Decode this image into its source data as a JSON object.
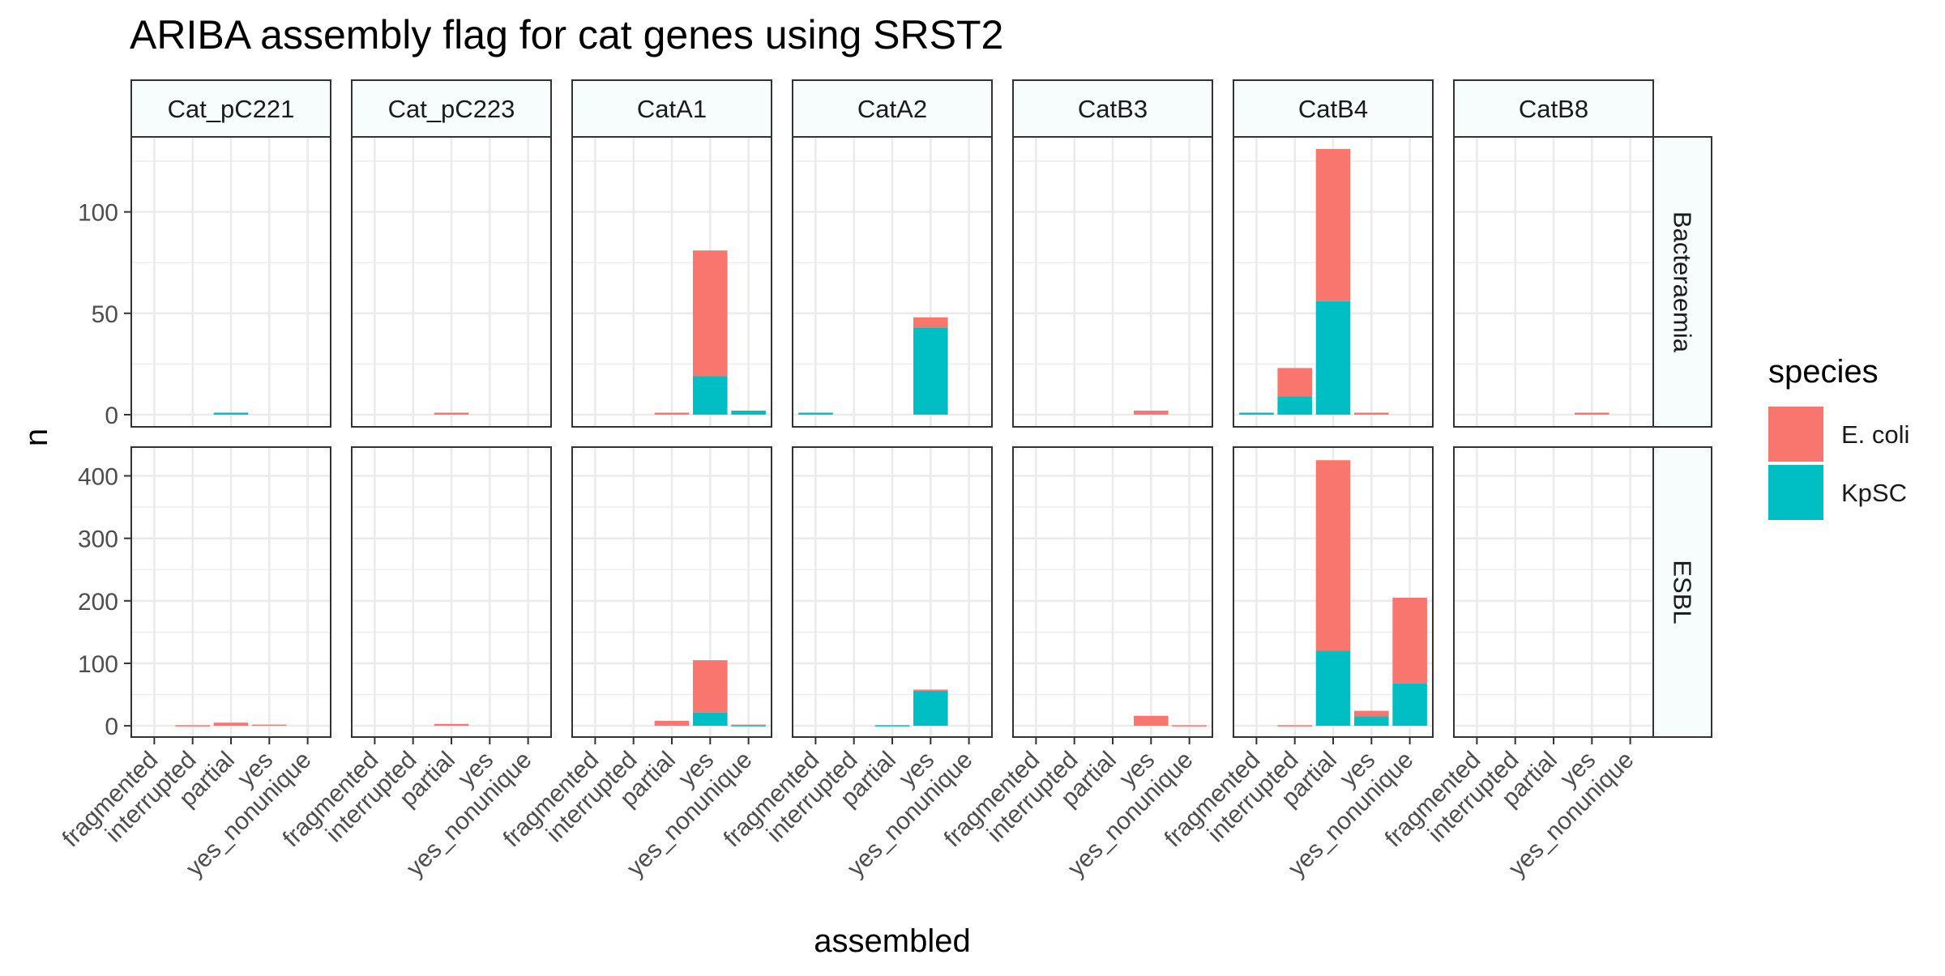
{
  "chart_data": {
    "type": "bar",
    "stacked": true,
    "title": "ARIBA assembly flag for cat genes using SRST2",
    "xlabel": "assembled",
    "ylabel": "n",
    "categories": [
      "fragmented",
      "interrupted",
      "partial",
      "yes",
      "yes_nonunique"
    ],
    "facet_columns": [
      "Cat_pC221",
      "Cat_pC223",
      "CatA1",
      "CatA2",
      "CatB3",
      "CatB4",
      "CatB8"
    ],
    "facet_rows": [
      {
        "label": "Bacteraemia",
        "ylim": [
          -6,
          137
        ],
        "ticks": [
          0,
          50,
          100
        ],
        "minor_ticks": [
          25,
          75,
          125
        ]
      },
      {
        "label": "ESBL",
        "ylim": [
          -18,
          446
        ],
        "ticks": [
          0,
          100,
          200,
          300,
          400
        ],
        "minor_ticks": [
          50,
          150,
          250,
          350
        ]
      }
    ],
    "legend": {
      "title": "species",
      "position": "right",
      "entries": [
        "E. coli",
        "KpSC"
      ]
    },
    "series": [
      {
        "name": "E. coli",
        "color": "#F8766D"
      },
      {
        "name": "KpSC",
        "color": "#00BFC4"
      }
    ],
    "grid": true,
    "panels": {
      "Bacteraemia": {
        "Cat_pC221": {
          "E. coli": [
            0,
            0,
            0,
            0,
            0
          ],
          "KpSC": [
            0,
            0,
            1,
            0,
            0
          ]
        },
        "Cat_pC223": {
          "E. coli": [
            0,
            0,
            1,
            0,
            0
          ],
          "KpSC": [
            0,
            0,
            0,
            0,
            0
          ]
        },
        "CatA1": {
          "E. coli": [
            0,
            0,
            1,
            62,
            0
          ],
          "KpSC": [
            0,
            0,
            0,
            19,
            2
          ]
        },
        "CatA2": {
          "E. coli": [
            0,
            0,
            0,
            5,
            0
          ],
          "KpSC": [
            1,
            0,
            0,
            43,
            0
          ]
        },
        "CatB3": {
          "E. coli": [
            0,
            0,
            0,
            2,
            0
          ],
          "KpSC": [
            0,
            0,
            0,
            0,
            0
          ]
        },
        "CatB4": {
          "E. coli": [
            0,
            14,
            75,
            1,
            0
          ],
          "KpSC": [
            1,
            9,
            56,
            0,
            0
          ]
        },
        "CatB8": {
          "E. coli": [
            0,
            0,
            0,
            1,
            0
          ],
          "KpSC": [
            0,
            0,
            0,
            0,
            0
          ]
        }
      },
      "ESBL": {
        "Cat_pC221": {
          "E. coli": [
            0,
            1,
            5,
            2,
            0
          ],
          "KpSC": [
            0,
            0,
            0,
            0,
            0
          ]
        },
        "Cat_pC223": {
          "E. coli": [
            0,
            0,
            3,
            0,
            0
          ],
          "KpSC": [
            0,
            0,
            0,
            0,
            0
          ]
        },
        "CatA1": {
          "E. coli": [
            0,
            0,
            8,
            84,
            1
          ],
          "KpSC": [
            0,
            0,
            0,
            21,
            1
          ]
        },
        "CatA2": {
          "E. coli": [
            0,
            0,
            0,
            2,
            0
          ],
          "KpSC": [
            0,
            0,
            1,
            56,
            0
          ]
        },
        "CatB3": {
          "E. coli": [
            0,
            0,
            0,
            16,
            1
          ],
          "KpSC": [
            0,
            0,
            0,
            0,
            0
          ]
        },
        "CatB4": {
          "E. coli": [
            0,
            1,
            305,
            9,
            137
          ],
          "KpSC": [
            0,
            0,
            120,
            15,
            68
          ]
        },
        "CatB8": {
          "E. coli": [
            0,
            0,
            0,
            0,
            0
          ],
          "KpSC": [
            0,
            0,
            0,
            0,
            0
          ]
        }
      }
    }
  }
}
